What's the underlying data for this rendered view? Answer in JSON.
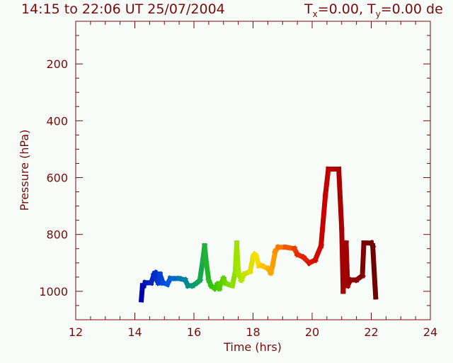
{
  "chart_data": {
    "type": "line",
    "title": "14:15 to 22:06 UT 25/07/2004",
    "subtitle": {
      "t": "T",
      "x_sub": "x",
      "x_val": "=0.00, ",
      "y_sub": "y",
      "y_val": "=0.00 de"
    },
    "xlabel": "Time  (hrs)",
    "ylabel": "Pressure  (hPa)",
    "xlim": [
      12,
      24
    ],
    "ylim": [
      1100,
      50
    ],
    "xticks": [
      "12",
      "14",
      "16",
      "18",
      "20",
      "22",
      "24"
    ],
    "yticks": [
      "200",
      "400",
      "600",
      "800",
      "1000"
    ],
    "axis_color": "#7a0a0a",
    "grid": false,
    "colormap": "rainbow (blue → green → yellow → red → dark red) by time",
    "series": [
      {
        "x": [
          14.22,
          14.26,
          14.3,
          14.35,
          14.4,
          14.55,
          14.62,
          14.65,
          14.7,
          14.75,
          14.8,
          14.85,
          14.95,
          15.1,
          15.2,
          15.3,
          15.5,
          15.7,
          15.8,
          15.95,
          16.1,
          16.2,
          16.3,
          16.36,
          16.42,
          16.5,
          16.58,
          16.7,
          16.8,
          16.86,
          16.9,
          17.0,
          17.06,
          17.15,
          17.3,
          17.4,
          17.45,
          17.48,
          17.52,
          17.6,
          17.7,
          17.9,
          18.0,
          18.05,
          18.1,
          18.2,
          18.3,
          18.5,
          18.6,
          18.66,
          18.75,
          18.85,
          19.1,
          19.4,
          19.5,
          19.7,
          19.9,
          20.1,
          20.3,
          20.45,
          20.55,
          20.8,
          20.9,
          21.0,
          21.05,
          21.1,
          21.15,
          21.2,
          21.3,
          21.5,
          21.7,
          21.75,
          22.0,
          22.05,
          22.15
        ],
        "y": [
          1030,
          980,
          980,
          970,
          970,
          970,
          950,
          940,
          935,
          960,
          970,
          940,
          970,
          975,
          955,
          955,
          955,
          960,
          980,
          980,
          970,
          960,
          890,
          840,
          900,
          960,
          980,
          990,
          975,
          990,
          975,
          955,
          970,
          975,
          980,
          930,
          830,
          900,
          940,
          960,
          940,
          930,
          880,
          870,
          875,
          910,
          910,
          920,
          935,
          910,
          860,
          845,
          845,
          850,
          870,
          880,
          900,
          890,
          840,
          660,
          570,
          570,
          570,
          780,
          1000,
          860,
          830,
          980,
          960,
          960,
          945,
          830,
          830,
          840,
          1020
        ]
      }
    ]
  }
}
